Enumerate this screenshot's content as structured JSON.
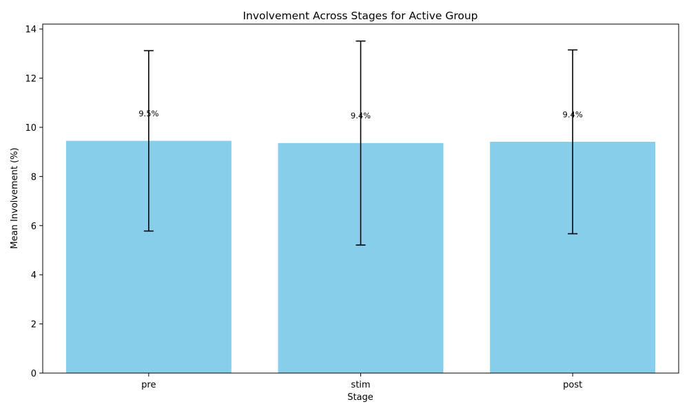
{
  "chart_data": {
    "type": "bar",
    "title": "Involvement Across Stages for Active Group",
    "xlabel": "Stage",
    "ylabel": "Mean Involvement (%)",
    "categories": [
      "pre",
      "stim",
      "post"
    ],
    "values": [
      9.45,
      9.36,
      9.41
    ],
    "error": [
      3.67,
      4.15,
      3.74
    ],
    "data_labels": [
      "9.5%",
      "9.4%",
      "9.4%"
    ],
    "ylim": [
      0,
      14.2
    ],
    "yticks": [
      0,
      2,
      4,
      6,
      8,
      10,
      12,
      14
    ],
    "grid": false,
    "legend": "none",
    "bar_color": "#87CEEB",
    "error_color": "#000000"
  }
}
